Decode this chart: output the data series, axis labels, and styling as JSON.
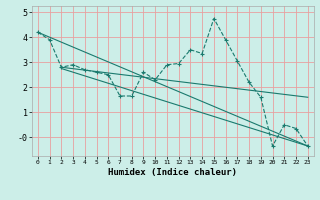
{
  "xlabel": "Humidex (Indice chaleur)",
  "bg_color": "#cceee8",
  "line_color": "#1a7a6e",
  "grid_color": "#e8a0a0",
  "xlim": [
    -0.5,
    23.5
  ],
  "ylim": [
    -0.75,
    5.25
  ],
  "yticks": [
    0,
    1,
    2,
    3,
    4,
    5
  ],
  "ytick_labels": [
    "-0",
    "1",
    "2",
    "3",
    "4",
    "5"
  ],
  "xticks": [
    0,
    1,
    2,
    3,
    4,
    5,
    6,
    7,
    8,
    9,
    10,
    11,
    12,
    13,
    14,
    15,
    16,
    17,
    18,
    19,
    20,
    21,
    22,
    23
  ],
  "series1_x": [
    0,
    1,
    2,
    3,
    4,
    5,
    6,
    7,
    8,
    9,
    10,
    11,
    12,
    13,
    14,
    15,
    16,
    17,
    18,
    19,
    20,
    21,
    22,
    23
  ],
  "series1_y": [
    4.2,
    3.9,
    2.8,
    2.9,
    2.7,
    2.6,
    2.5,
    1.65,
    1.65,
    2.6,
    2.3,
    2.9,
    2.95,
    3.5,
    3.35,
    4.75,
    3.9,
    3.05,
    2.2,
    1.6,
    -0.35,
    0.5,
    0.35,
    -0.35
  ],
  "series2_x": [
    0,
    23
  ],
  "series2_y": [
    4.2,
    -0.35
  ],
  "series3_x": [
    2,
    23
  ],
  "series3_y": [
    2.8,
    1.6
  ],
  "series4_x": [
    2,
    23
  ],
  "series4_y": [
    2.75,
    -0.35
  ]
}
